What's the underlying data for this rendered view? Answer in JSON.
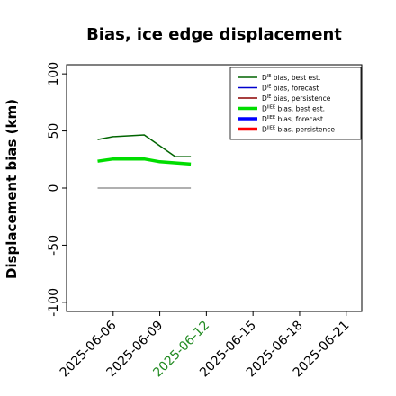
{
  "chart_data": {
    "type": "line",
    "title": "Bias, ice edge displacement",
    "xlabel": "",
    "ylabel": "Displacement bias (km)",
    "ylim": [
      -108,
      108
    ],
    "xlim": [
      "2025-06-03",
      "2025-06-22"
    ],
    "yticks": [
      -100,
      -50,
      0,
      50,
      100
    ],
    "xticks": [
      {
        "label": "2025-06-06",
        "highlight": false
      },
      {
        "label": "2025-06-09",
        "highlight": false
      },
      {
        "label": "2025-06-12",
        "highlight": true
      },
      {
        "label": "2025-06-15",
        "highlight": false
      },
      {
        "label": "2025-06-18",
        "highlight": false
      },
      {
        "label": "2025-06-21",
        "highlight": false
      }
    ],
    "grid": false,
    "legend_position": "top-right",
    "series": [
      {
        "name": "D^IE bias, best est.",
        "label_main": "D",
        "label_sup": "IE",
        "label_rest": " bias, best est.",
        "color": "#006400",
        "width": 1.5,
        "x": [
          "2025-06-05",
          "2025-06-06",
          "2025-06-08",
          "2025-06-10",
          "2025-06-11"
        ],
        "y": [
          42.5,
          45,
          46.5,
          27.5,
          27.5
        ]
      },
      {
        "name": "D^IE bias, forecast",
        "label_main": "D",
        "label_sup": "IE",
        "label_rest": " bias, forecast",
        "color": "#0000cd",
        "width": 1.5,
        "x": [],
        "y": []
      },
      {
        "name": "D^IE bias, persistence",
        "label_main": "D",
        "label_sup": "IE",
        "label_rest": " bias, persistence",
        "color": "#8b0000",
        "width": 1.5,
        "x": [],
        "y": []
      },
      {
        "name": "D^IIEE bias, best est.",
        "label_main": "D",
        "label_sup": "IIEE",
        "label_rest": " bias, best est.",
        "color": "#00dd00",
        "width": 3.5,
        "x": [
          "2025-06-05",
          "2025-06-06",
          "2025-06-08",
          "2025-06-09",
          "2025-06-11"
        ],
        "y": [
          23.5,
          25.5,
          25.5,
          23,
          21
        ]
      },
      {
        "name": "D^IIEE bias, forecast",
        "label_main": "D",
        "label_sup": "IIEE",
        "label_rest": " bias, forecast",
        "color": "#0000ff",
        "width": 3.5,
        "x": [],
        "y": []
      },
      {
        "name": "D^IIEE bias, persistence",
        "label_main": "D",
        "label_sup": "IIEE",
        "label_rest": " bias, persistence",
        "color": "#ff0000",
        "width": 3.5,
        "x": [],
        "y": []
      }
    ],
    "reference_line": {
      "y": 0,
      "x": [
        "2025-06-05",
        "2025-06-11"
      ],
      "color": "#808080"
    },
    "highlight_color": "#228b22"
  }
}
